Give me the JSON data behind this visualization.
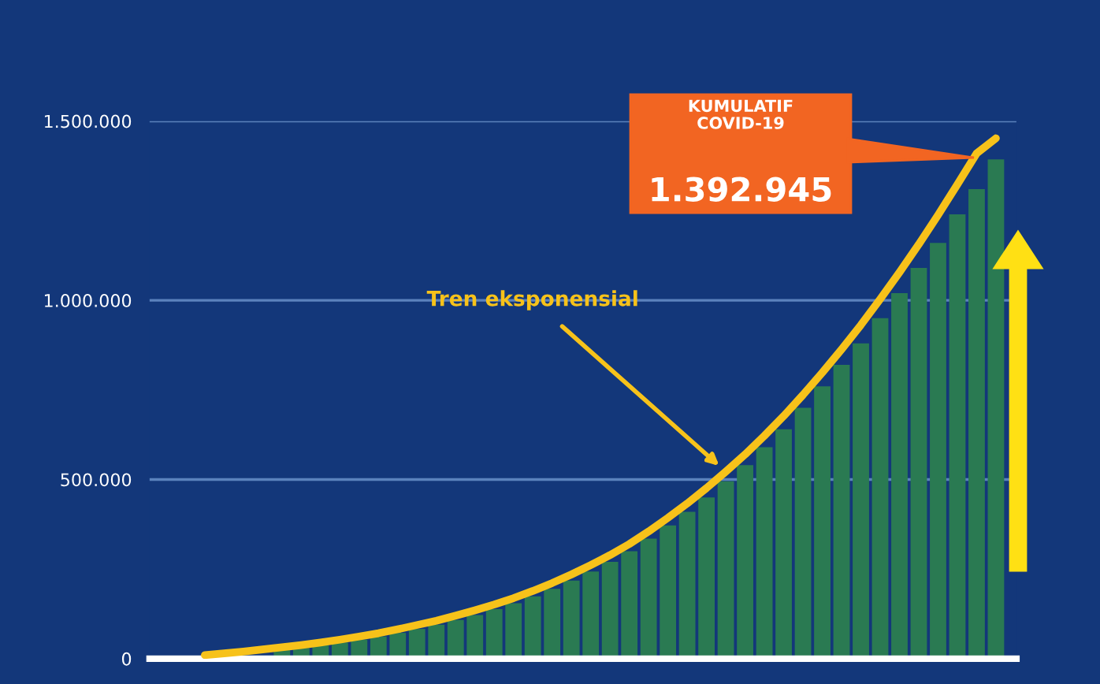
{
  "chart_data": {
    "type": "bar",
    "categories": [
      null,
      null,
      null,
      null,
      null,
      null,
      null,
      null,
      null,
      null,
      null,
      null,
      null,
      null,
      null,
      null,
      null,
      null,
      null,
      null,
      null,
      null,
      null,
      null,
      null,
      null,
      null,
      null,
      null,
      null,
      null,
      null,
      null,
      null,
      null,
      null,
      null,
      null,
      null,
      null,
      null,
      null
    ],
    "series": [
      {
        "color": "#2a7a52",
        "values": [
          null,
          null,
          null,
          null,
          25000,
          30000,
          37000,
          45000,
          53000,
          62000,
          72000,
          83000,
          95000,
          108000,
          122000,
          138000,
          155000,
          174000,
          195000,
          218000,
          243000,
          270000,
          300000,
          335000,
          372000,
          410000,
          450000,
          495000,
          540000,
          590000,
          640000,
          700000,
          760000,
          820000,
          880000,
          950000,
          1020000,
          1090000,
          1160000,
          1240000,
          1310000,
          1392945
        ]
      },
      {
        "type": "line",
        "name": "Tren eksponensial",
        "color": "#f7c21a",
        "values": [
          10000,
          15000,
          20000,
          26000,
          32000,
          38000,
          45000,
          53000,
          62000,
          71000,
          82000,
          94000,
          106000,
          120000,
          135000,
          151000,
          169000,
          189000,
          211000,
          235000,
          261000,
          289000,
          320000,
          355000,
          393000,
          433000,
          476000,
          522000,
          570000,
          622000,
          677000,
          736000,
          798000,
          863000,
          931000,
          1003000,
          1078000,
          1156000,
          1238000,
          1323000,
          1410000,
          1452000
        ]
      }
    ],
    "ylim": [
      0,
      1500000
    ],
    "yticks": [
      0,
      {
        "value": 500000,
        "label": "500.000"
      },
      {
        "value": 1000000,
        "label": "1.000.000"
      },
      {
        "value": 1500000,
        "label": "1.500.000"
      }
    ],
    "grid": "y",
    "annotations": [
      "KUMULATIF\nCOVID-19",
      "1.392.945"
    ]
  }
}
